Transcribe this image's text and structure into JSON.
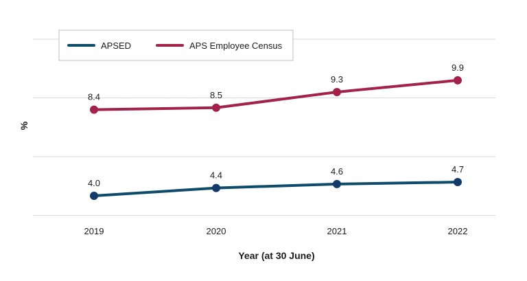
{
  "colors": {
    "apsed": "#0f4c6b",
    "census": "#a3224a",
    "apsed_marker": "#123a6b"
  },
  "chart_data": {
    "type": "line",
    "title": "",
    "xlabel": "Year (at 30 June)",
    "ylabel": "%",
    "categories": [
      "2019",
      "2020",
      "2021",
      "2022"
    ],
    "ylim": [
      2,
      11
    ],
    "grid": true,
    "y_gridlines": [
      3,
      6,
      9,
      12
    ],
    "legend_position": "top-left",
    "series": [
      {
        "name": "APSED",
        "values": [
          4.0,
          4.4,
          4.6,
          4.7
        ],
        "labels": [
          "4.0",
          "4.4",
          "4.6",
          "4.7"
        ],
        "color_key": "apsed"
      },
      {
        "name": "APS Employee Census",
        "values": [
          8.4,
          8.5,
          9.3,
          9.9
        ],
        "labels": [
          "8.4",
          "8.5",
          "9.3",
          "9.9"
        ],
        "color_key": "census"
      }
    ]
  }
}
